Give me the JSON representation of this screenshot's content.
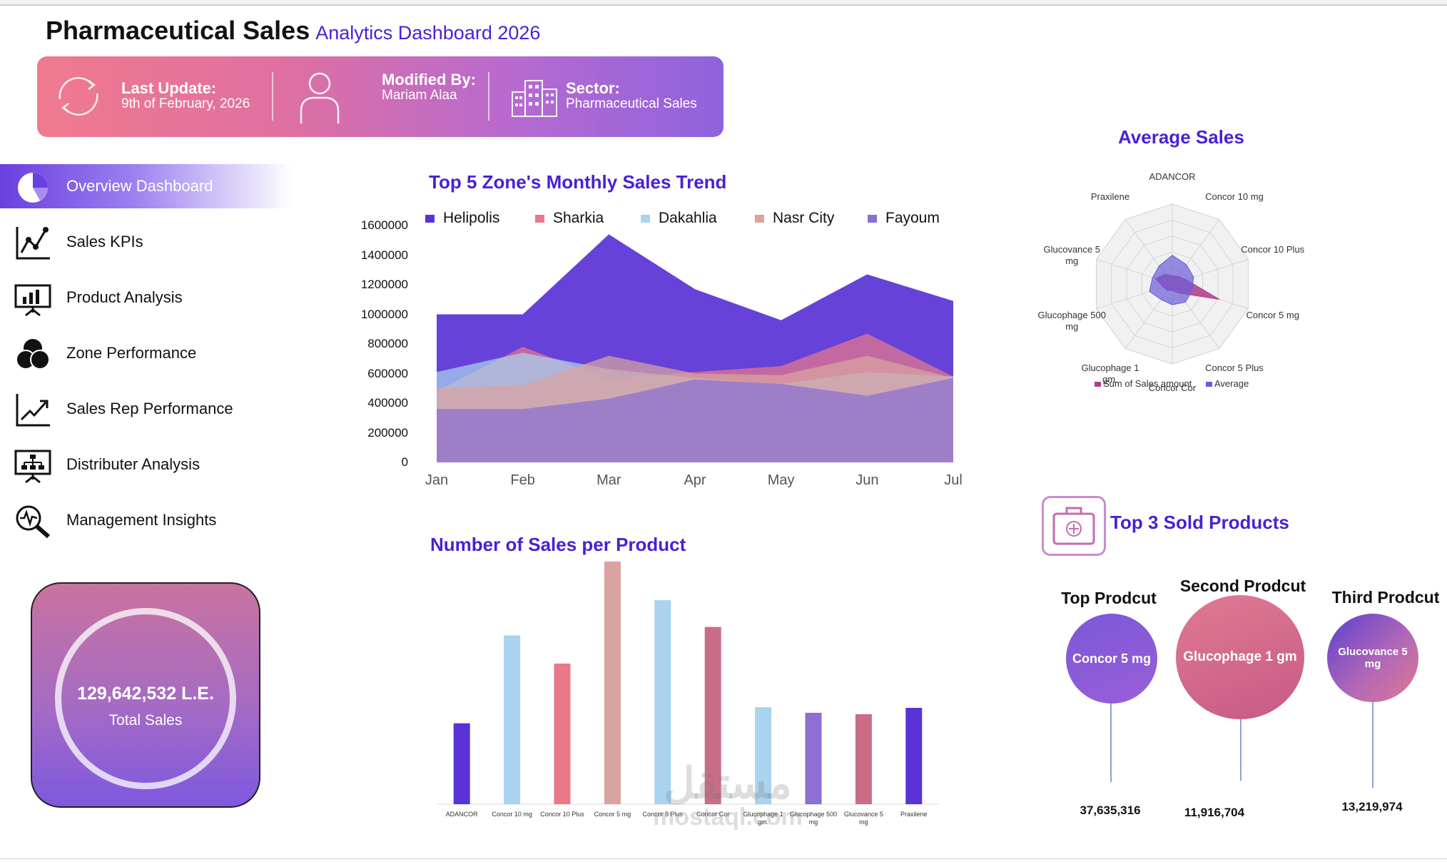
{
  "header": {
    "title": "Pharmaceutical Sales",
    "subtitle": "Analytics Dashboard 2026"
  },
  "banner": {
    "last_update_label": "Last Update:",
    "last_update_value": "9th of February, 2026",
    "modified_label": "Modified By:",
    "modified_value": "Mariam Alaa",
    "sector_label": "Sector:",
    "sector_value": "Pharmaceutical Sales"
  },
  "sidebar": {
    "items": [
      {
        "label": "Overview Dashboard",
        "icon": "pie-chart-icon",
        "active": true
      },
      {
        "label": "Sales KPIs",
        "icon": "line-chart-icon"
      },
      {
        "label": "Product Analysis",
        "icon": "presentation-chart-icon"
      },
      {
        "label": "Zone Performance",
        "icon": "venn-circles-icon"
      },
      {
        "label": "Sales Rep Performance",
        "icon": "trend-arrow-icon"
      },
      {
        "label": "Distributer Analysis",
        "icon": "org-chart-board-icon"
      },
      {
        "label": "Management Insights",
        "icon": "magnifier-pulse-icon"
      }
    ]
  },
  "kpi": {
    "value": "129,642,532 L.E.",
    "label": "Total Sales"
  },
  "chart_data": [
    {
      "type": "area",
      "title": "Top 5 Zone's Monthly Sales Trend",
      "categories": [
        "Jan",
        "Feb",
        "Mar",
        "Apr",
        "May",
        "Jun",
        "Jul"
      ],
      "yticks": [
        "1600000",
        "1400000",
        "1200000",
        "1000000",
        "800000",
        "600000",
        "400000",
        "200000",
        "0"
      ],
      "ylim": [
        0,
        1600000
      ],
      "legend_position": "top",
      "series": [
        {
          "name": "Helipolis",
          "color": "#5a32d6",
          "values": [
            1000000,
            1000000,
            1540000,
            1170000,
            960000,
            1270000,
            1090000
          ]
        },
        {
          "name": "Sharkia",
          "color": "#e8788a",
          "values": [
            480000,
            780000,
            560000,
            610000,
            650000,
            870000,
            580000
          ]
        },
        {
          "name": "Dakahlia",
          "color": "#a9d3ef",
          "values": [
            610000,
            740000,
            630000,
            570000,
            530000,
            610000,
            580000
          ]
        },
        {
          "name": "Nasr City",
          "color": "#d9a3a0",
          "values": [
            500000,
            520000,
            720000,
            600000,
            590000,
            720000,
            570000
          ]
        },
        {
          "name": "Fayoum",
          "color": "#8c6fd0",
          "values": [
            360000,
            360000,
            430000,
            560000,
            530000,
            450000,
            570000
          ]
        }
      ]
    },
    {
      "type": "bar",
      "title": "Number of Sales per Product",
      "categories": [
        "ADANCOR",
        "Concor 10 mg",
        "Concor 10 Plus",
        "Concor 5 mg",
        "Concor 5 Plus",
        "Concor Cor",
        "Glucophage 1 gm.",
        "Glucophage 500 mg",
        "Glucovance 5 mg",
        "Praxilene"
      ],
      "values": [
        115,
        240,
        200,
        345,
        290,
        252,
        138,
        130,
        128,
        137
      ],
      "colors": [
        "#5a32d6",
        "#a9d3ef",
        "#e8788a",
        "#d9a3a0",
        "#a9d3ef",
        "#c96d86",
        "#a9d3ef",
        "#8c6fd0",
        "#c96d86",
        "#5a32d6"
      ],
      "ylim": [
        0,
        350
      ]
    },
    {
      "type": "radar",
      "title": "Average Sales",
      "categories": [
        "ADANCOR",
        "Concor 10 mg",
        "Concor 10 Plus",
        "Concor 5 mg",
        "Concor 5 Plus",
        "Concor Cor",
        "Glucophage 1 gm.",
        "Glucophage 500 mg",
        "Glucovance 5 mg",
        "Praxilene"
      ],
      "series": [
        {
          "name": "Sum of Sales amount",
          "color": "#b23a8c",
          "values": [
            0.1,
            0.12,
            0.18,
            0.62,
            0.14,
            0.08,
            0.1,
            0.12,
            0.22,
            0.15
          ]
        },
        {
          "name": "Average",
          "color": "#6a5cd8",
          "values": [
            0.36,
            0.3,
            0.28,
            0.26,
            0.28,
            0.26,
            0.24,
            0.3,
            0.26,
            0.28
          ]
        }
      ],
      "legend_position": "bottom"
    }
  ],
  "top3": {
    "title": "Top 3 Sold Products",
    "products": [
      {
        "rank_label": "Top Prodcut",
        "name": "Concor 5 mg",
        "value": "37,635,316"
      },
      {
        "rank_label": "Second Prodcut",
        "name": "Glucophage 1 gm",
        "value": "11,916,704"
      },
      {
        "rank_label": "Third Prodcut",
        "name": "Glucovance 5 mg",
        "value": "13,219,974"
      }
    ]
  },
  "watermark": {
    "arabic": "مستقل",
    "latin": "mostaql.com"
  }
}
